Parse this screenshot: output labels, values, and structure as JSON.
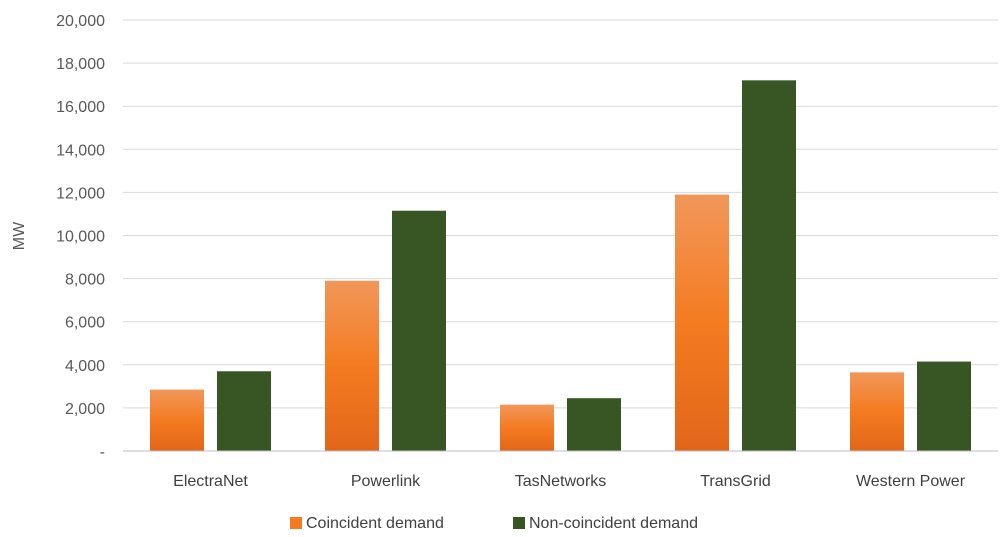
{
  "chart_data": {
    "type": "bar",
    "title": "",
    "xlabel": "",
    "ylabel": "MW",
    "ylim": [
      0,
      20000
    ],
    "yticks": [
      0,
      2000,
      4000,
      6000,
      8000,
      10000,
      12000,
      14000,
      16000,
      18000,
      20000
    ],
    "ytick_labels": [
      "-",
      "2,000",
      "4,000",
      "6,000",
      "8,000",
      "10,000",
      "12,000",
      "14,000",
      "16,000",
      "18,000",
      "20,000"
    ],
    "categories": [
      "ElectraNet",
      "Powerlink",
      "TasNetworks",
      "TransGrid",
      "Western Power"
    ],
    "series": [
      {
        "name": "Coincident demand",
        "values": [
          2850,
          7900,
          2150,
          11900,
          3650
        ]
      },
      {
        "name": "Non-coincident demand",
        "values": [
          3700,
          11150,
          2450,
          17200,
          4150
        ]
      }
    ],
    "grid": true,
    "legend": "bottom"
  },
  "colors": {
    "coincident_top": "#f1975a",
    "coincident_mid": "#f47b20",
    "coincident_bottom": "#e2661a",
    "non_coincident": "#375623",
    "grid": "#d9d9d9",
    "axis": "#bfbfbf"
  }
}
